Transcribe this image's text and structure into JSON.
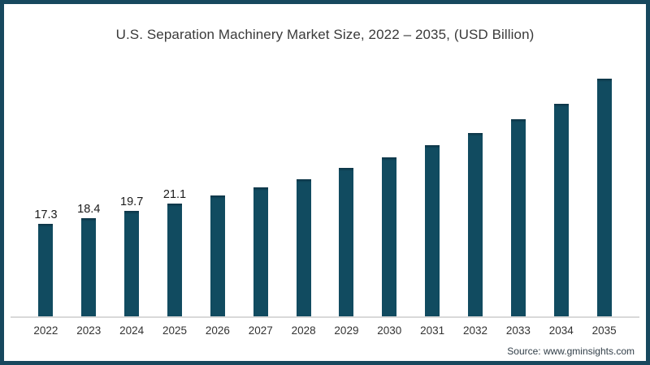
{
  "chart_data": {
    "type": "bar",
    "title": "U.S. Separation Machinery Market Size, 2022 – 2035, (USD Billion)",
    "categories": [
      "2022",
      "2023",
      "2024",
      "2025",
      "2026",
      "2027",
      "2028",
      "2029",
      "2030",
      "2031",
      "2032",
      "2033",
      "2034",
      "2035"
    ],
    "values": [
      17.3,
      18.4,
      19.7,
      21.1,
      22.6,
      24.1,
      25.7,
      27.8,
      29.8,
      32.0,
      34.3,
      36.9,
      39.8,
      44.5
    ],
    "shown_value_labels": [
      "17.3",
      "18.4",
      "19.7",
      "21.1",
      "",
      "",
      "",
      "",
      "",
      "",
      "",
      "",
      "",
      ""
    ],
    "xlabel": "",
    "ylabel": "",
    "ylim": [
      0,
      47
    ],
    "grid": false,
    "legend": "none",
    "bar_color": "#114b60",
    "frame_border_color": "#17485e",
    "axis_line_color": "#d9d9d9"
  },
  "source": {
    "text": "Source: www.gminsights.com"
  }
}
